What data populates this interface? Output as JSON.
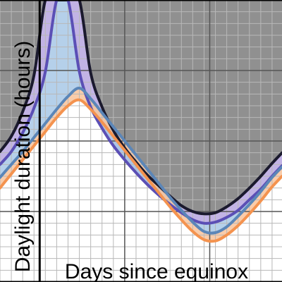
{
  "chart_data": {
    "type": "area",
    "xlabel": "Days since equinox",
    "ylabel": "Daylight duration (hours)",
    "xlim": [
      -56,
      342
    ],
    "ylim": [
      0,
      24
    ],
    "grid": true,
    "series": [
      {
        "color": "#1b1a2e",
        "x": [
          -56,
          -40,
          -24,
          -8,
          8,
          24,
          40,
          56,
          72,
          88,
          104,
          120,
          136,
          152,
          168,
          184,
          200,
          216,
          232,
          248,
          264,
          280,
          296,
          312,
          328,
          342
        ],
        "y": [
          11.1,
          12.4,
          14.5,
          17.6,
          24.0,
          24.0,
          24.0,
          24.0,
          17.8,
          14.9,
          12.9,
          11.4,
          10.2,
          9.1,
          8.2,
          7.3,
          6.5,
          6.0,
          5.8,
          5.9,
          6.4,
          7.1,
          8.0,
          9.0,
          10.1,
          11.0
        ]
      },
      {
        "color": "#5b4fb5",
        "fill": "#b7a6e0",
        "x": [
          -56,
          -40,
          -24,
          -8,
          8,
          24,
          40,
          56,
          72,
          88,
          104,
          120,
          136,
          152,
          168,
          184,
          200,
          216,
          232,
          248,
          264,
          280,
          296,
          312,
          328,
          342
        ],
        "y": [
          10.0,
          11.1,
          12.7,
          14.8,
          17.9,
          24.0,
          24.0,
          17.9,
          14.9,
          13.1,
          11.6,
          10.4,
          9.3,
          8.3,
          7.4,
          6.6,
          5.9,
          5.3,
          5.0,
          5.1,
          5.5,
          6.1,
          7.0,
          7.9,
          9.0,
          9.9
        ]
      },
      {
        "color": "#5b86b8",
        "fill": "#a8c8e6",
        "x": [
          -56,
          -40,
          -24,
          -8,
          8,
          24,
          40,
          56,
          72,
          88,
          104,
          120,
          136,
          152,
          168,
          184,
          200,
          216,
          232,
          248,
          264,
          280,
          296,
          312,
          328,
          342
        ],
        "y": [
          8.9,
          10.0,
          11.1,
          12.3,
          13.5,
          14.7,
          15.8,
          16.5,
          15.6,
          14.4,
          13.2,
          12.0,
          10.8,
          9.6,
          8.4,
          7.2,
          6.1,
          5.1,
          4.3,
          4.2,
          4.7,
          5.6,
          6.6,
          7.7,
          8.9,
          9.8
        ]
      },
      {
        "color": "#f4934f",
        "fill": "#f8c39b",
        "x": [
          -56,
          -40,
          -24,
          -8,
          8,
          24,
          40,
          56,
          72,
          88,
          104,
          120,
          136,
          152,
          168,
          184,
          200,
          216,
          232,
          248,
          264,
          280,
          296,
          312,
          328,
          342
        ],
        "y": [
          8.0,
          9.2,
          10.4,
          11.6,
          12.8,
          14.0,
          15.0,
          15.5,
          14.7,
          13.6,
          12.4,
          11.2,
          10.0,
          8.8,
          7.6,
          6.4,
          5.3,
          4.3,
          3.6,
          3.5,
          4.0,
          4.8,
          5.8,
          6.9,
          8.1,
          9.0
        ]
      }
    ]
  }
}
